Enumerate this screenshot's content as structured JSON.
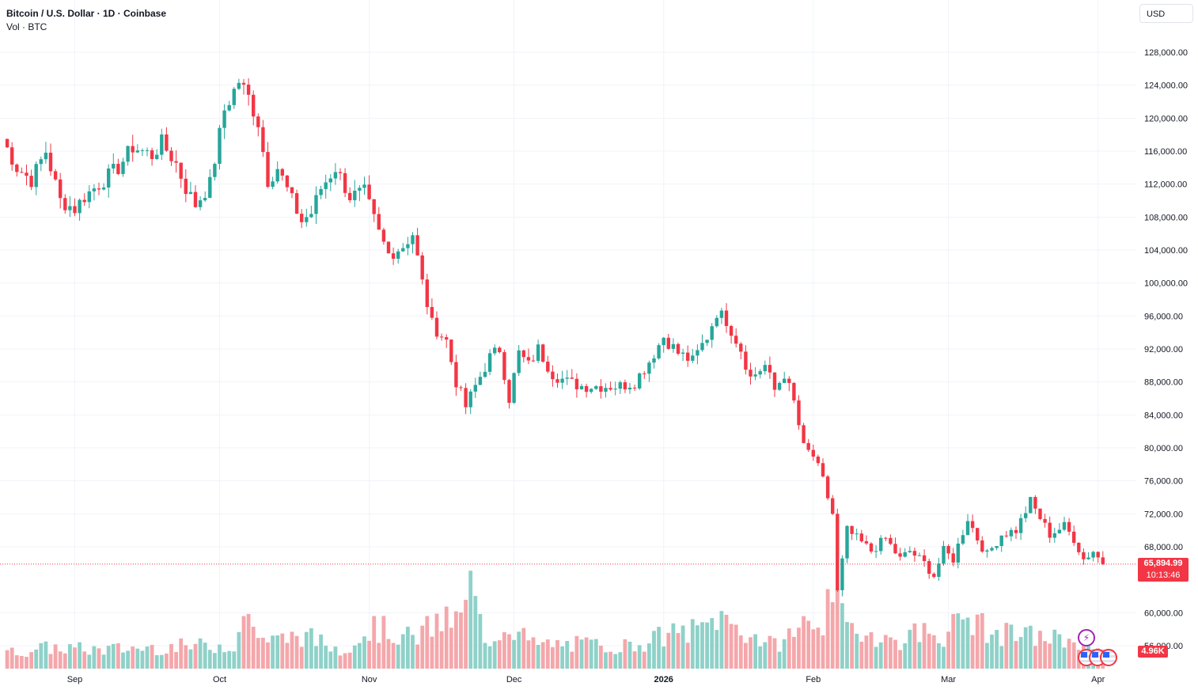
{
  "legend": {
    "symbol": "Bitcoin / U.S. Dollar · 1D · Coinbase",
    "volume": "Vol · BTC"
  },
  "currency": "USD",
  "last_price_label": "65,894.99",
  "countdown_label": "10:13:46",
  "volume_label": "4.96K",
  "colors": {
    "up": "#26a69a",
    "down": "#f23645",
    "up_volume": "#8fd1c9",
    "down_volume": "#f4a7ab",
    "grid": "#f0f3fa",
    "axis_text": "#131722"
  },
  "icons": [
    "lightning-icon",
    "us-flag-icon",
    "us-flag-icon",
    "us-flag-icon"
  ],
  "chart_data": {
    "type": "candlestick",
    "title": "Bitcoin / U.S. Dollar · 1D · Coinbase",
    "y_axis": {
      "ticks": [
        "128,000.00",
        "124,000.00",
        "120,000.00",
        "116,000.00",
        "112,000.00",
        "108,000.00",
        "104,000.00",
        "100,000.00",
        "96,000.00",
        "92,000.00",
        "88,000.00",
        "84,000.00",
        "80,000.00",
        "76,000.00",
        "72,000.00",
        "68,000.00",
        "60,000.00",
        "56,000.00"
      ],
      "tick_values": [
        128000,
        124000,
        120000,
        116000,
        112000,
        108000,
        104000,
        100000,
        96000,
        92000,
        88000,
        84000,
        80000,
        76000,
        72000,
        68000,
        60000,
        56000
      ],
      "range": [
        54000,
        133000
      ]
    },
    "x_axis": {
      "ticks": [
        "Sep",
        "Oct",
        "Nov",
        "Dec",
        "2026",
        "Feb",
        "Mar",
        "Apr"
      ],
      "tick_days": [
        15,
        45,
        76,
        106,
        137,
        168,
        196,
        227
      ]
    },
    "grid": true,
    "last_price": 65894.99,
    "days": 228,
    "anchors": [
      [
        0,
        117500
      ],
      [
        3,
        114000
      ],
      [
        6,
        112500
      ],
      [
        9,
        116000
      ],
      [
        12,
        110000
      ],
      [
        15,
        109000
      ],
      [
        17,
        110500
      ],
      [
        20,
        112000
      ],
      [
        24,
        114000
      ],
      [
        27,
        116500
      ],
      [
        31,
        115500
      ],
      [
        33,
        117000
      ],
      [
        36,
        114500
      ],
      [
        38,
        111500
      ],
      [
        40,
        109500
      ],
      [
        43,
        112000
      ],
      [
        46,
        121000
      ],
      [
        49,
        124500
      ],
      [
        51,
        122500
      ],
      [
        53,
        119500
      ],
      [
        55,
        112500
      ],
      [
        57,
        114000
      ],
      [
        60,
        110000
      ],
      [
        62,
        107500
      ],
      [
        64,
        108500
      ],
      [
        66,
        111500
      ],
      [
        69,
        114000
      ],
      [
        72,
        110500
      ],
      [
        75,
        111000
      ],
      [
        78,
        106000
      ],
      [
        80,
        103500
      ],
      [
        83,
        104500
      ],
      [
        85,
        106000
      ],
      [
        87,
        100000
      ],
      [
        89,
        95000
      ],
      [
        92,
        93000
      ],
      [
        94,
        88000
      ],
      [
        96,
        85000
      ],
      [
        98,
        87500
      ],
      [
        101,
        91000
      ],
      [
        103,
        92000
      ],
      [
        105,
        86000
      ],
      [
        107,
        91500
      ],
      [
        109,
        90000
      ],
      [
        111,
        92000
      ],
      [
        114,
        89000
      ],
      [
        117,
        88000
      ],
      [
        120,
        87500
      ],
      [
        124,
        87500
      ],
      [
        128,
        87500
      ],
      [
        131,
        88000
      ],
      [
        134,
        90500
      ],
      [
        137,
        93500
      ],
      [
        140,
        91500
      ],
      [
        143,
        90500
      ],
      [
        146,
        93500
      ],
      [
        148,
        96500
      ],
      [
        150,
        95500
      ],
      [
        153,
        92000
      ],
      [
        155,
        88500
      ],
      [
        158,
        90000
      ],
      [
        160,
        87000
      ],
      [
        162,
        89000
      ],
      [
        164,
        85500
      ],
      [
        166,
        80000
      ],
      [
        168,
        79000
      ],
      [
        170,
        76000
      ],
      [
        172,
        72000
      ],
      [
        173,
        62500
      ],
      [
        175,
        70000
      ],
      [
        177,
        69000
      ],
      [
        180,
        67500
      ],
      [
        183,
        69000
      ],
      [
        186,
        66500
      ],
      [
        188,
        67500
      ],
      [
        191,
        66000
      ],
      [
        193,
        64500
      ],
      [
        195,
        67500
      ],
      [
        197,
        66500
      ],
      [
        200,
        71500
      ],
      [
        202,
        69000
      ],
      [
        204,
        67000
      ],
      [
        207,
        69500
      ],
      [
        210,
        70000
      ],
      [
        213,
        73500
      ],
      [
        215,
        71500
      ],
      [
        217,
        69500
      ],
      [
        220,
        70500
      ],
      [
        222,
        69000
      ],
      [
        224,
        66500
      ],
      [
        226,
        67500
      ],
      [
        228,
        65900
      ]
    ],
    "volume_anchors": [
      [
        0,
        20
      ],
      [
        10,
        28
      ],
      [
        20,
        25
      ],
      [
        30,
        28
      ],
      [
        40,
        30
      ],
      [
        48,
        32
      ],
      [
        50,
        72
      ],
      [
        55,
        35
      ],
      [
        62,
        45
      ],
      [
        70,
        25
      ],
      [
        77,
        55
      ],
      [
        85,
        40
      ],
      [
        90,
        60
      ],
      [
        95,
        65
      ],
      [
        97,
        110
      ],
      [
        100,
        35
      ],
      [
        105,
        60
      ],
      [
        110,
        32
      ],
      [
        120,
        32
      ],
      [
        130,
        30
      ],
      [
        138,
        45
      ],
      [
        145,
        52
      ],
      [
        148,
        70
      ],
      [
        155,
        45
      ],
      [
        160,
        30
      ],
      [
        165,
        55
      ],
      [
        168,
        65
      ],
      [
        170,
        68
      ],
      [
        172,
        90
      ],
      [
        175,
        55
      ],
      [
        180,
        48
      ],
      [
        185,
        35
      ],
      [
        190,
        50
      ],
      [
        195,
        45
      ],
      [
        200,
        70
      ],
      [
        205,
        45
      ],
      [
        210,
        45
      ],
      [
        215,
        42
      ],
      [
        220,
        38
      ],
      [
        225,
        40
      ],
      [
        228,
        30
      ]
    ]
  }
}
